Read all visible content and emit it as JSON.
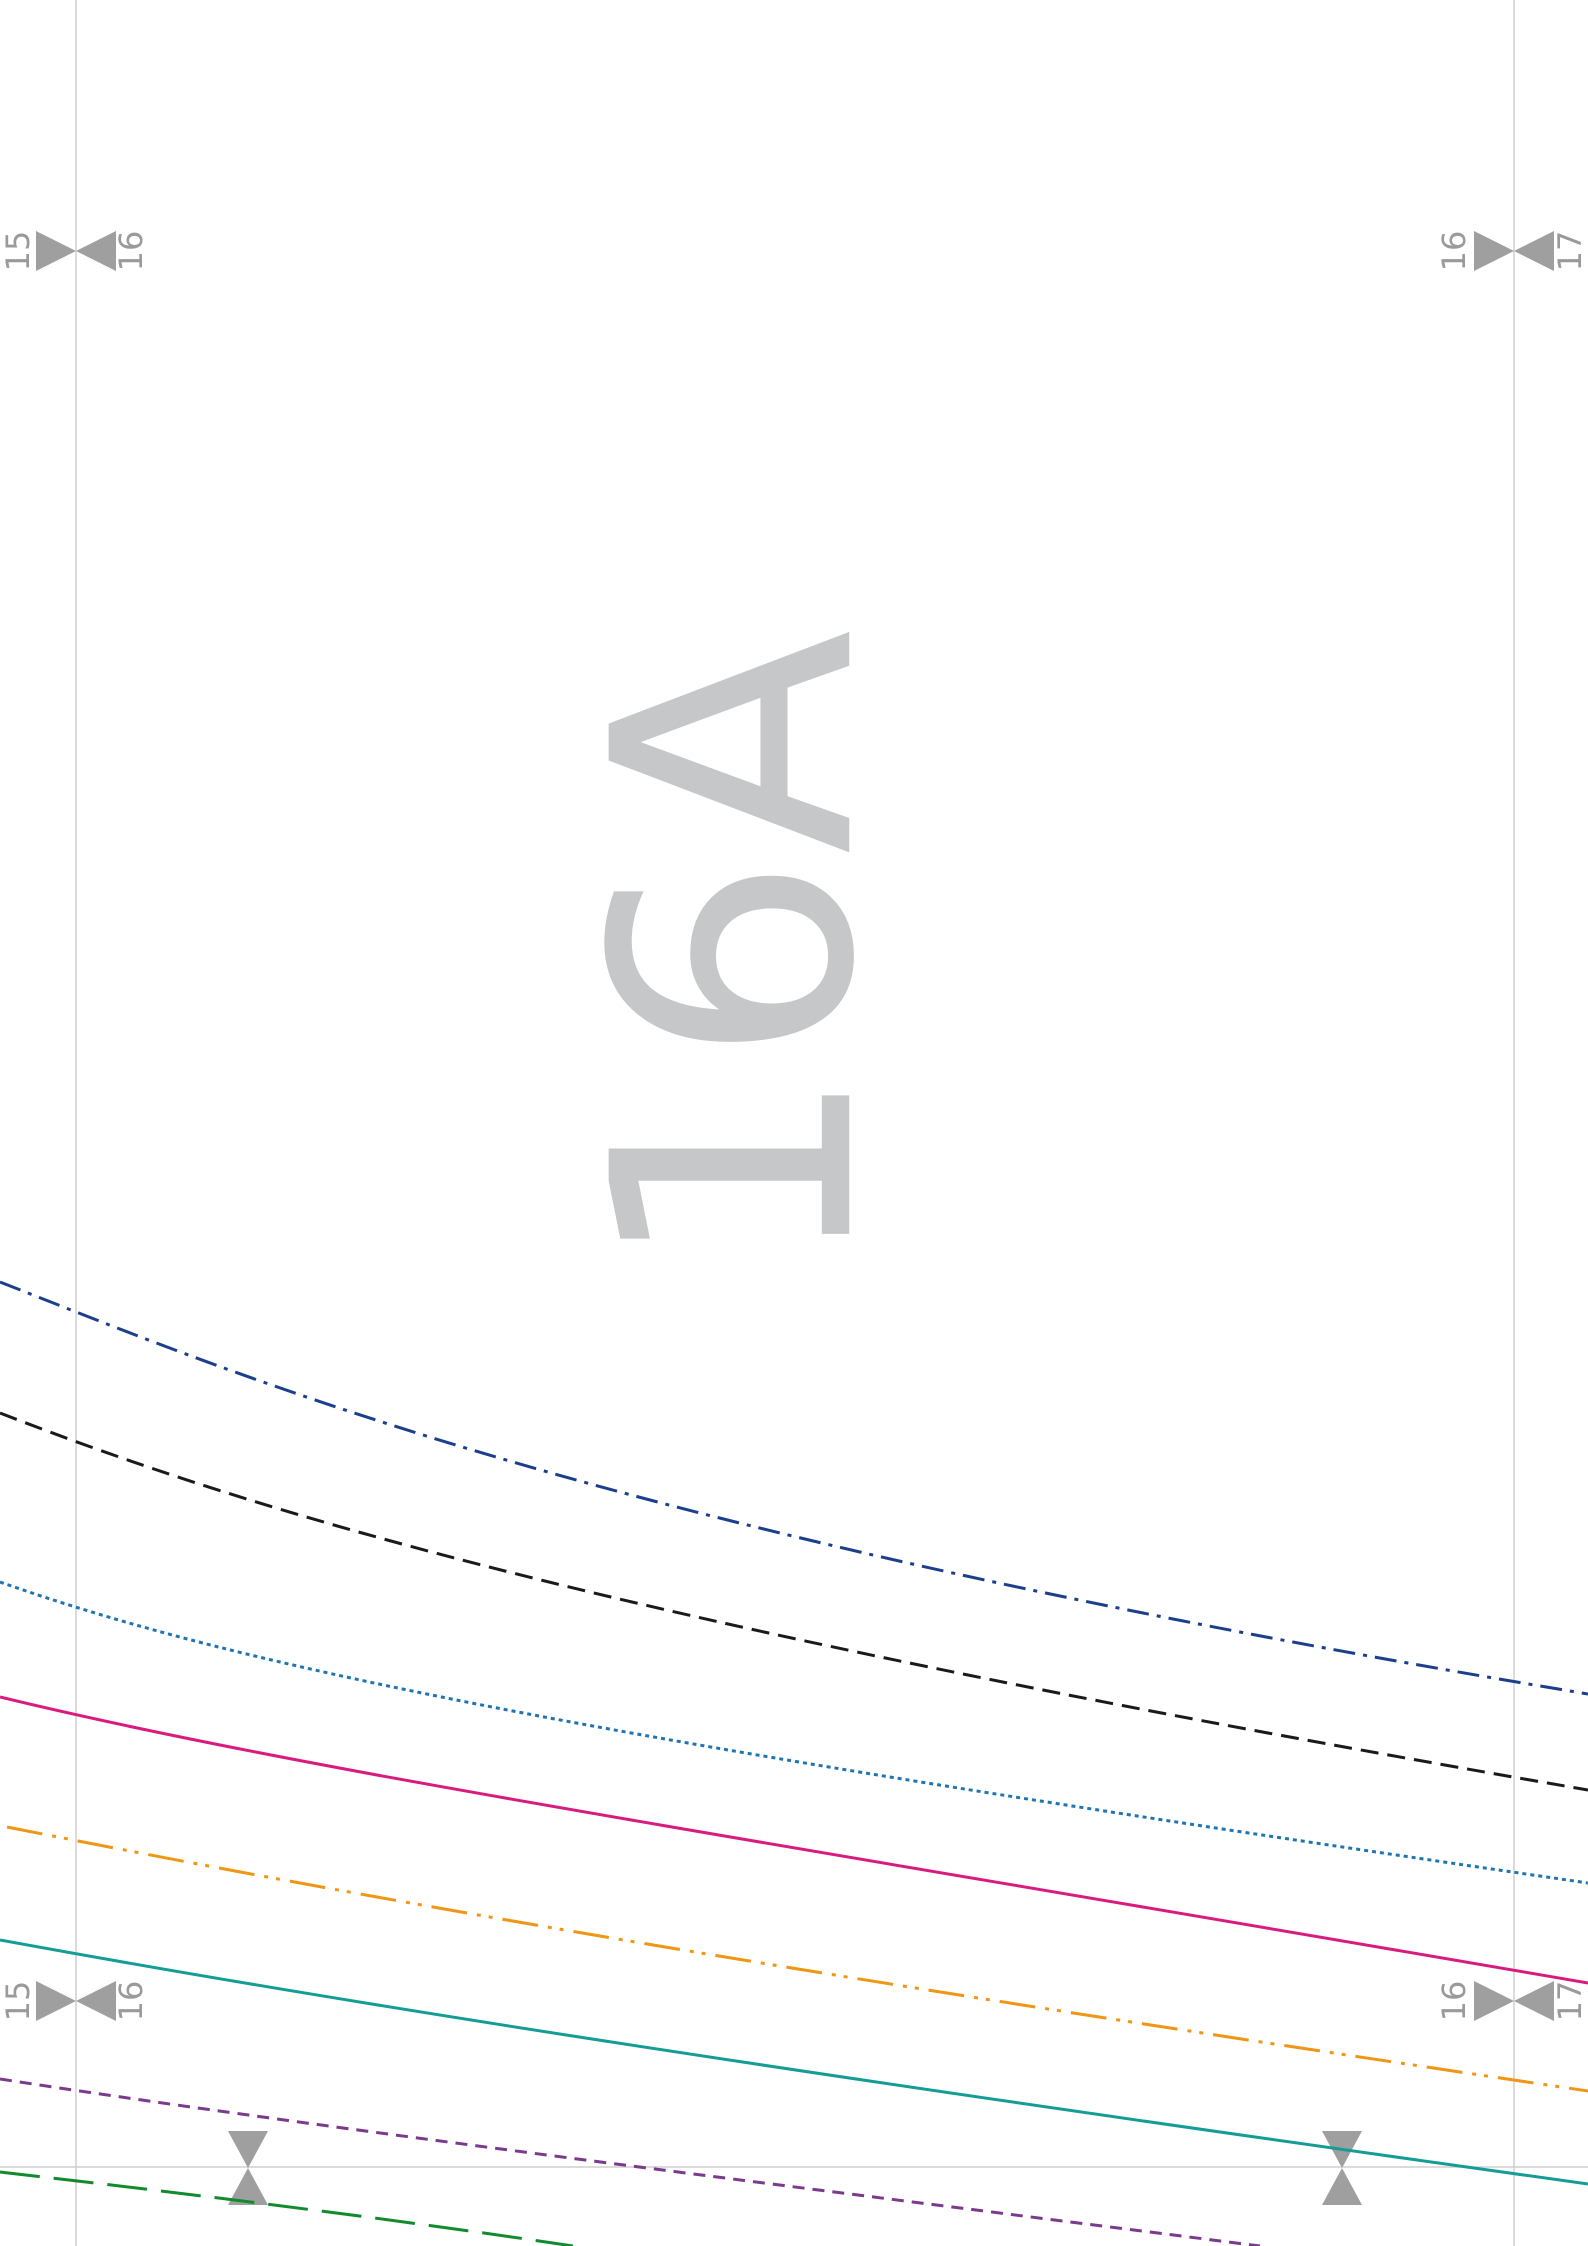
{
  "page_label": "16A",
  "markers": {
    "top": {
      "left": [
        "15",
        "16"
      ],
      "right": [
        "16",
        "17"
      ]
    },
    "bottom": {
      "left": [
        "15",
        "16"
      ],
      "right": [
        "16",
        "17"
      ]
    }
  }
}
